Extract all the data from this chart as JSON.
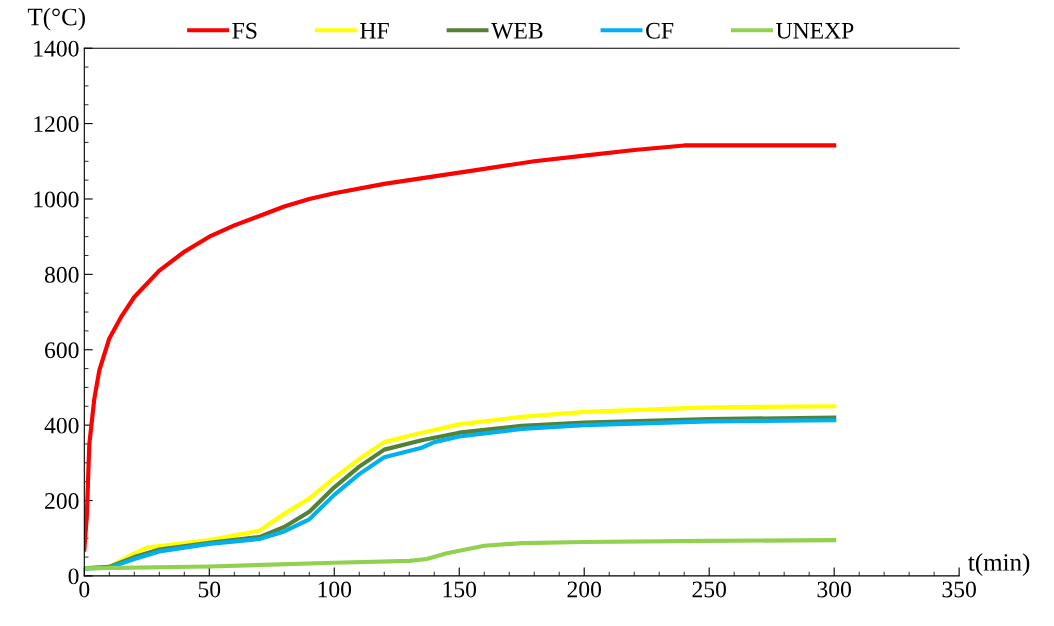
{
  "chart_data": {
    "type": "line",
    "xlabel": "t(min)",
    "ylabel": "T(°C)",
    "xlim": [
      0,
      350
    ],
    "xticks": [
      0,
      50,
      100,
      150,
      200,
      250,
      300,
      350
    ],
    "ylim": [
      0,
      1400
    ],
    "yticks": [
      0,
      200,
      400,
      600,
      800,
      1000,
      1200,
      1400
    ],
    "legend": "top",
    "grid": false,
    "marker": "none",
    "line_style": "solid",
    "series": [
      {
        "name": "FS",
        "color": "#ff0000",
        "x": [
          0,
          1,
          2,
          4,
          6,
          10,
          15,
          20,
          30,
          40,
          50,
          60,
          70,
          80,
          90,
          100,
          120,
          140,
          160,
          180,
          200,
          220,
          240,
          300
        ],
        "values": [
          70,
          160,
          350,
          470,
          545,
          630,
          690,
          740,
          810,
          860,
          900,
          930,
          955,
          980,
          1000,
          1015,
          1040,
          1060,
          1080,
          1100,
          1115,
          1130,
          1142,
          1142
        ]
      },
      {
        "name": "HF",
        "color": "#ffff00",
        "x": [
          0,
          10,
          20,
          25,
          50,
          70,
          80,
          90,
          100,
          110,
          120,
          135,
          150,
          175,
          200,
          250,
          300
        ],
        "values": [
          20,
          24,
          60,
          75,
          95,
          120,
          165,
          205,
          260,
          310,
          355,
          380,
          402,
          422,
          435,
          447,
          450
        ]
      },
      {
        "name": "WEB",
        "color": "#548235",
        "x": [
          0,
          10,
          20,
          30,
          50,
          70,
          80,
          90,
          100,
          110,
          120,
          135,
          150,
          175,
          200,
          250,
          300
        ],
        "values": [
          20,
          24,
          50,
          70,
          88,
          103,
          130,
          170,
          235,
          290,
          335,
          360,
          380,
          398,
          407,
          416,
          420
        ]
      },
      {
        "name": "CF",
        "color": "#00b0f0",
        "x": [
          0,
          10,
          20,
          30,
          50,
          70,
          80,
          90,
          100,
          110,
          120,
          135,
          140,
          150,
          175,
          200,
          250,
          300
        ],
        "values": [
          20,
          22,
          45,
          65,
          85,
          98,
          118,
          150,
          215,
          270,
          315,
          340,
          355,
          370,
          390,
          400,
          410,
          413
        ]
      },
      {
        "name": "UNEXP",
        "color": "#92d050",
        "x": [
          0,
          50,
          100,
          130,
          137,
          145,
          160,
          175,
          200,
          250,
          300
        ],
        "values": [
          20,
          25,
          35,
          40,
          45,
          60,
          80,
          87,
          90,
          93,
          95
        ]
      }
    ]
  }
}
